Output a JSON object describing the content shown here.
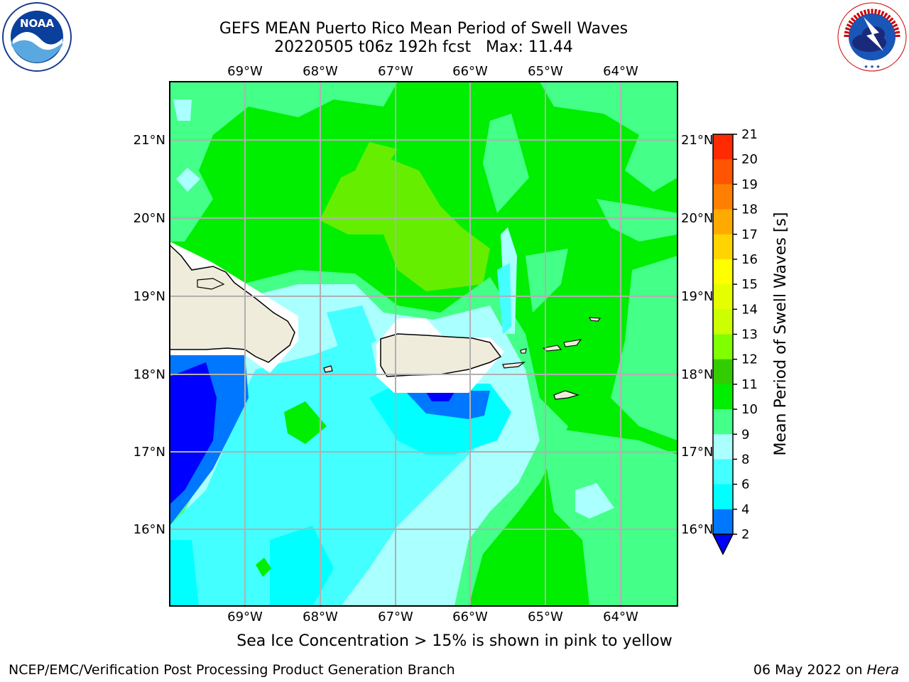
{
  "title_line1": "GEFS MEAN Puerto Rico Mean Period of Swell Waves",
  "title_line2": "20220505 t06z 192h fcst   Max: 11.44",
  "caption": "Sea Ice Concentration > 15% is shown in pink to yellow",
  "footer_left": "NCEP/EMC/Verification Post Processing Product Generation Branch",
  "footer_right_date": "06 May 2022 on ",
  "footer_right_host": "Hera",
  "logos": {
    "left": "NOAA",
    "right": "NATIONAL WEATHER SERVICE"
  },
  "map": {
    "lon_labels": [
      "69°W",
      "68°W",
      "67°W",
      "66°W",
      "65°W",
      "64°W"
    ],
    "lat_labels": [
      "21°N",
      "20°N",
      "19°N",
      "18°N",
      "17°N",
      "16°N"
    ]
  },
  "colorbar": {
    "label": "Mean Period of Swell Waves [s]",
    "ticks": [
      "21",
      "20",
      "19",
      "18",
      "17",
      "16",
      "15",
      "14",
      "13",
      "12",
      "11",
      "10",
      "9",
      "8",
      "6",
      "4",
      "2"
    ],
    "colors": [
      "#ff0000",
      "#ff2a00",
      "#ff5500",
      "#ff8000",
      "#ffaa00",
      "#ffd400",
      "#ffff00",
      "#e5ff00",
      "#ccff00",
      "#80ff00",
      "#33cc00",
      "#00ee00",
      "#44ff88",
      "#aaffff",
      "#44ffff",
      "#00ffff",
      "#0077ff",
      "#0000ff"
    ],
    "extend_color": "#0000ff"
  },
  "map_colors": {
    "dark_blue": "#0000ff",
    "blue": "#0077ff",
    "cyan": "#00ffff",
    "light_cyan": "#44ffff",
    "pale_cyan": "#aaffff",
    "sea_green": "#44ff88",
    "green": "#00ee00",
    "yellow_green": "#66ee00",
    "land": "#efecdc"
  }
}
